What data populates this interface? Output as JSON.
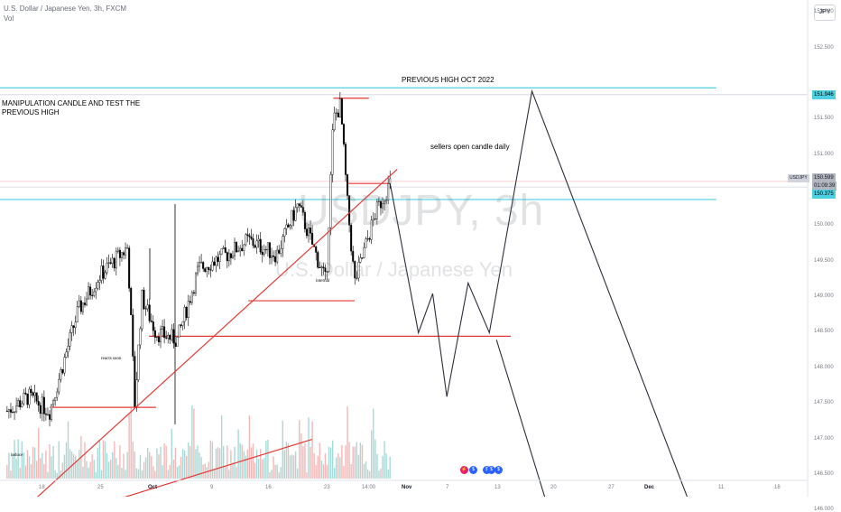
{
  "header": {
    "symbol_line": "U.S. Dollar / Japanese Yen, 3h, FXCM",
    "volume_label": "Vol",
    "currency_button": "JPY"
  },
  "watermark": {
    "ticker": "USDJPY, 3h",
    "name": "U.S. Dollar / Japanese Yen"
  },
  "price_axis": {
    "labels": [
      "153.000",
      "152.500",
      "151.500",
      "151.000",
      "150.000",
      "149.500",
      "149.000",
      "148.500",
      "148.000",
      "147.500",
      "147.000",
      "146.500",
      "146.000"
    ],
    "badges": {
      "prev_high": "151.946",
      "current": "150.599",
      "countdown": "01:09:39",
      "level": "150.375",
      "symbol_tag": "USDJPY"
    }
  },
  "time_axis": {
    "labels": [
      {
        "text": "18",
        "bold": false
      },
      {
        "text": "25",
        "bold": false
      },
      {
        "text": "Oct",
        "bold": true
      },
      {
        "text": "9",
        "bold": false
      },
      {
        "text": "16",
        "bold": false
      },
      {
        "text": "23",
        "bold": false
      },
      {
        "text": "14:00",
        "bold": false
      },
      {
        "text": "Nov",
        "bold": true
      },
      {
        "text": "7",
        "bold": false
      },
      {
        "text": "13",
        "bold": false
      },
      {
        "text": "20",
        "bold": false
      },
      {
        "text": "27",
        "bold": false
      },
      {
        "text": "Dec",
        "bold": true
      },
      {
        "text": "11",
        "bold": false
      },
      {
        "text": "18",
        "bold": false
      }
    ]
  },
  "annotations": {
    "previous_high": "PREVIOUS HIGH OCT 2022",
    "manipulation": "MANIPULATION CANDLE AND TEST THE PREVIOUS HIGH",
    "sellers": "sellers open candle daily",
    "internal": "internal",
    "reacts": "reacts soon",
    "induce": "induce"
  },
  "events": [
    {
      "glyph": "⚡",
      "color": "#e91e63"
    },
    {
      "glyph": "$",
      "color": "#2962ff"
    },
    {
      "glyph": "$",
      "color": "#2962ff"
    },
    {
      "glyph": "$",
      "color": "#2962ff"
    },
    {
      "glyph": "$",
      "color": "#2962ff"
    }
  ],
  "colors": {
    "bull": "#000000",
    "bear": "#000000",
    "vol_up": "#80cbc4",
    "vol_down": "#ef9a9a",
    "cyan_line": "#4dd0e1",
    "red_line": "#e53935",
    "projection": "#2a2e39"
  },
  "chart_data": {
    "type": "candlestick",
    "symbol": "USDJPY",
    "interval": "3h",
    "y_range": [
      145.8,
      153.0
    ],
    "previous_high": 151.946,
    "last_price": 150.599,
    "key_level": 150.375,
    "price_path": [
      {
        "date": "2023-09-15",
        "price": 147.4
      },
      {
        "date": "2023-09-18",
        "price": 147.6
      },
      {
        "date": "2023-09-21",
        "price": 147.4
      },
      {
        "date": "2023-09-25",
        "price": 148.8
      },
      {
        "date": "2023-09-28",
        "price": 149.3
      },
      {
        "date": "2023-10-02",
        "price": 149.7
      },
      {
        "date": "2023-10-03",
        "price": 147.5
      },
      {
        "date": "2023-10-04",
        "price": 149.0
      },
      {
        "date": "2023-10-06",
        "price": 148.5
      },
      {
        "date": "2023-10-09",
        "price": 148.4
      },
      {
        "date": "2023-10-12",
        "price": 149.4
      },
      {
        "date": "2023-10-16",
        "price": 149.6
      },
      {
        "date": "2023-10-19",
        "price": 149.8
      },
      {
        "date": "2023-10-23",
        "price": 149.6
      },
      {
        "date": "2023-10-26",
        "price": 150.3
      },
      {
        "date": "2023-10-30",
        "price": 149.2
      },
      {
        "date": "2023-10-31",
        "price": 151.5
      },
      {
        "date": "2023-11-01",
        "price": 151.7
      },
      {
        "date": "2023-11-02",
        "price": 150.3
      },
      {
        "date": "2023-11-03",
        "price": 149.2
      },
      {
        "date": "2023-11-06",
        "price": 150.2
      },
      {
        "date": "2023-11-08",
        "price": 150.6
      }
    ],
    "projection": [
      {
        "date": "2023-11-08",
        "price": 150.6
      },
      {
        "date": "2023-11-12",
        "price": 148.5
      },
      {
        "date": "2023-11-14",
        "price": 149.05
      },
      {
        "date": "2023-11-16",
        "price": 147.6
      },
      {
        "date": "2023-11-19",
        "price": 149.2
      },
      {
        "date": "2023-11-22",
        "price": 148.5
      },
      {
        "date": "2023-11-28",
        "price": 151.9
      },
      {
        "date": "2023-12-21",
        "price": 145.9
      }
    ],
    "projection2": [
      {
        "date": "2023-11-23",
        "price": 148.4
      },
      {
        "date": "2023-12-01",
        "price": 145.8
      }
    ],
    "horizontal_levels": [
      {
        "price": 151.946,
        "color": "cyan",
        "from": "2023-09-14",
        "to": "2023-12-24"
      },
      {
        "price": 150.375,
        "color": "cyan",
        "from": "2023-09-14",
        "to": "2023-12-24"
      },
      {
        "price": 151.8,
        "color": "red",
        "from": "2023-10-31",
        "to": "2023-11-05"
      },
      {
        "price": 150.6,
        "color": "red",
        "from": "2023-11-02",
        "to": "2023-11-08"
      },
      {
        "price": 148.95,
        "color": "red",
        "from": "2023-10-19",
        "to": "2023-11-03"
      },
      {
        "price": 148.45,
        "color": "red",
        "from": "2023-10-05",
        "to": "2023-11-25"
      },
      {
        "price": 147.45,
        "color": "red",
        "from": "2023-09-21",
        "to": "2023-10-06"
      }
    ],
    "trendlines": [
      {
        "from": {
          "date": "2023-09-15",
          "price": 145.8
        },
        "to": {
          "date": "2023-11-09",
          "price": 150.8
        }
      },
      {
        "from": {
          "date": "2023-09-19",
          "price": 145.8
        },
        "to": {
          "date": "2023-10-28",
          "price": 147.0
        }
      }
    ]
  }
}
